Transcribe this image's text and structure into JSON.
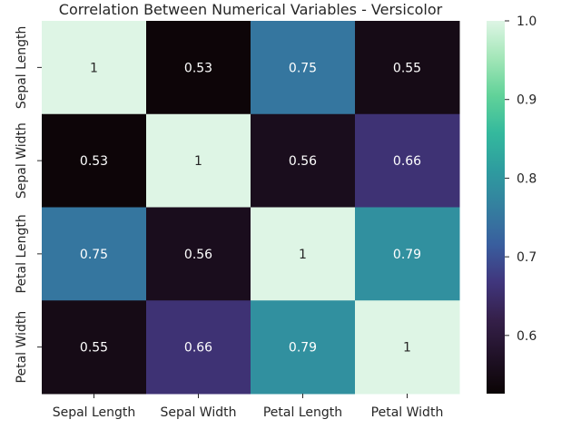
{
  "chart_data": {
    "type": "heatmap",
    "title": "Correlation Between Numerical Variables - Versicolor",
    "x_labels": [
      "Sepal Length",
      "Sepal Width",
      "Petal Length",
      "Petal Width"
    ],
    "y_labels": [
      "Sepal Length",
      "Sepal Width",
      "Petal Length",
      "Petal Width"
    ],
    "values": [
      [
        1,
        0.53,
        0.75,
        0.55
      ],
      [
        0.53,
        1,
        0.56,
        0.66
      ],
      [
        0.75,
        0.56,
        1,
        0.79
      ],
      [
        0.55,
        0.66,
        0.79,
        1
      ]
    ],
    "annotations": [
      [
        "1",
        "0.53",
        "0.75",
        "0.55"
      ],
      [
        "0.53",
        "1",
        "0.56",
        "0.66"
      ],
      [
        "0.75",
        "0.56",
        "1",
        "0.79"
      ],
      [
        "0.55",
        "0.66",
        "0.79",
        "1"
      ]
    ],
    "colorbar": {
      "range": [
        0.526,
        1.0
      ],
      "ticks": [
        0.6,
        0.7,
        0.8,
        0.9,
        1.0
      ],
      "tick_labels": [
        "0.6",
        "0.7",
        "0.8",
        "0.9",
        "1.0"
      ],
      "colormap": "mako",
      "position": "right"
    },
    "colors": {
      "low": "#0b0405",
      "high": "#def5e5"
    }
  }
}
